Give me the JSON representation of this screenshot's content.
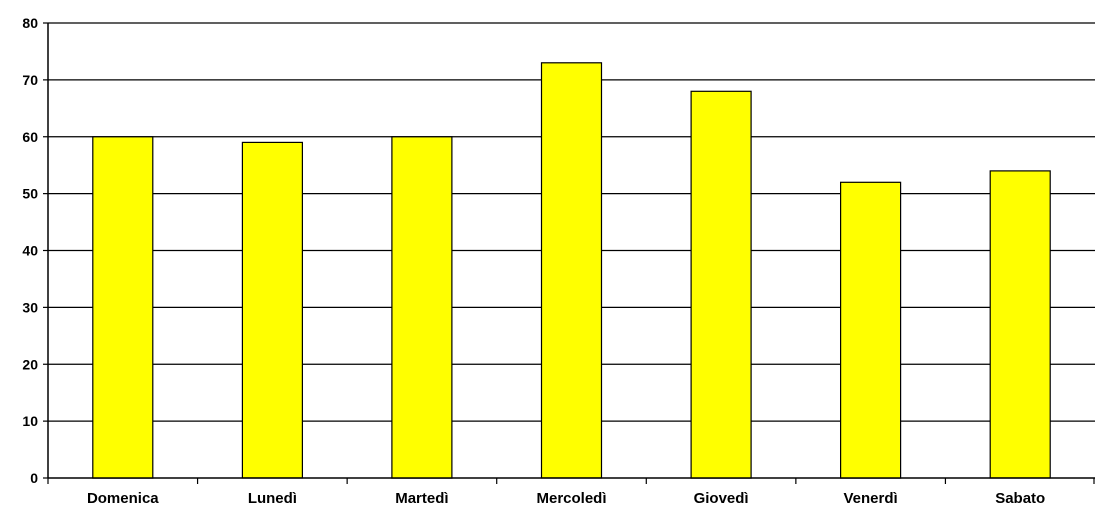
{
  "chart_data": {
    "type": "bar",
    "categories": [
      "Domenica",
      "Lunedì",
      "Martedì",
      "Mercoledì",
      "Giovedì",
      "Venerdì",
      "Sabato"
    ],
    "values": [
      60,
      59,
      60,
      73,
      68,
      52,
      54
    ],
    "ylim": [
      0,
      80
    ],
    "yticks": [
      0,
      10,
      20,
      30,
      40,
      50,
      60,
      70,
      80
    ],
    "grid": true,
    "legend": "none",
    "title": "",
    "xlabel": "",
    "ylabel": "",
    "bar_color": "#FFFF00",
    "bar_edge_color": "#000000"
  }
}
